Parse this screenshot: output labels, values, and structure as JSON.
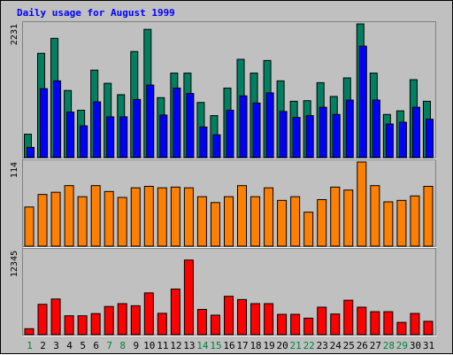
{
  "title": "Daily usage for August 1999",
  "colors": {
    "background": "#c0c0c0",
    "title": "#0000ff",
    "weekday_label": "#000000",
    "weekend_label": "#008040",
    "hits": "#008060",
    "files": "#0000ff",
    "sites": "#ff8000",
    "kbytes": "#ff0000"
  },
  "chart_data": [
    {
      "type": "bar",
      "panel": "top",
      "ymax_label": "2231",
      "ylim": [
        0,
        2231
      ],
      "categories": [
        "1",
        "2",
        "3",
        "4",
        "5",
        "6",
        "7",
        "8",
        "9",
        "10",
        "11",
        "12",
        "13",
        "14",
        "15",
        "16",
        "17",
        "18",
        "19",
        "20",
        "21",
        "22",
        "23",
        "24",
        "25",
        "26",
        "27",
        "28",
        "29",
        "30",
        "31"
      ],
      "weekend": [
        1,
        7,
        8,
        14,
        15,
        21,
        22,
        28,
        29
      ],
      "series": [
        {
          "key": "hits",
          "values": [
            390,
            1740,
            1990,
            1120,
            790,
            1460,
            1240,
            1050,
            1770,
            2140,
            1000,
            1410,
            1410,
            920,
            700,
            1160,
            1640,
            1410,
            1620,
            1280,
            940,
            950,
            1250,
            1020,
            1330,
            2231,
            1410,
            720,
            780,
            1300,
            940
          ]
        },
        {
          "key": "files",
          "values": [
            170,
            1150,
            1280,
            760,
            530,
            930,
            680,
            680,
            970,
            1210,
            710,
            1160,
            1070,
            510,
            380,
            790,
            1030,
            910,
            1080,
            770,
            670,
            700,
            840,
            720,
            960,
            1860,
            960,
            560,
            590,
            840,
            640
          ]
        }
      ]
    },
    {
      "type": "bar",
      "panel": "middle",
      "ymax_label": "114",
      "ylim": [
        0,
        114
      ],
      "categories": [
        "1",
        "2",
        "3",
        "4",
        "5",
        "6",
        "7",
        "8",
        "9",
        "10",
        "11",
        "12",
        "13",
        "14",
        "15",
        "16",
        "17",
        "18",
        "19",
        "20",
        "21",
        "22",
        "23",
        "24",
        "25",
        "26",
        "27",
        "28",
        "29",
        "30",
        "31"
      ],
      "series": [
        {
          "key": "sites",
          "values": [
            53,
            70,
            73,
            82,
            67,
            82,
            74,
            66,
            79,
            81,
            79,
            80,
            79,
            67,
            59,
            67,
            82,
            67,
            79,
            62,
            67,
            46,
            63,
            80,
            76,
            114,
            82,
            60,
            62,
            68,
            81
          ]
        }
      ]
    },
    {
      "type": "bar",
      "panel": "bottom",
      "ymax_label": "12345",
      "ylim": [
        0,
        12345
      ],
      "categories": [
        "1",
        "2",
        "3",
        "4",
        "5",
        "6",
        "7",
        "8",
        "9",
        "10",
        "11",
        "12",
        "13",
        "14",
        "15",
        "16",
        "17",
        "18",
        "19",
        "20",
        "21",
        "22",
        "23",
        "24",
        "25",
        "26",
        "27",
        "28",
        "29",
        "30",
        "31"
      ],
      "series": [
        {
          "key": "kbytes",
          "values": [
            870,
            4450,
            5230,
            2770,
            2770,
            3090,
            4130,
            4550,
            4240,
            6130,
            3130,
            6690,
            10950,
            3700,
            2860,
            5630,
            5150,
            4550,
            4550,
            2980,
            2980,
            2420,
            4030,
            3030,
            5050,
            4030,
            3370,
            3370,
            1800,
            3110,
            1960
          ]
        }
      ]
    }
  ]
}
